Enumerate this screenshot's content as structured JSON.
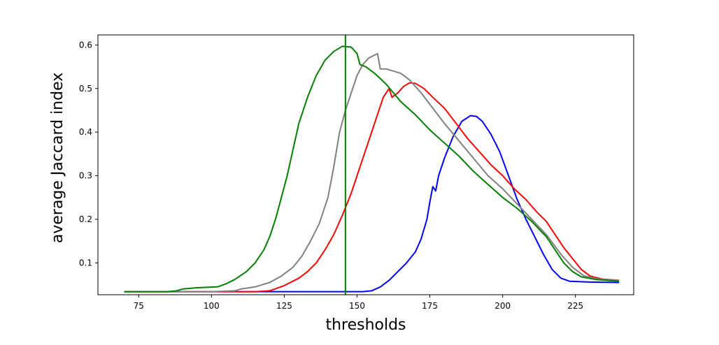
{
  "chart_data": {
    "type": "line",
    "title": "",
    "xlabel": "thresholds",
    "ylabel": "average Jaccard index",
    "xlim": [
      61,
      245
    ],
    "ylim": [
      0.027,
      0.623
    ],
    "xticks": [
      75,
      100,
      125,
      150,
      175,
      200,
      225
    ],
    "yticks": [
      0.1,
      0.2,
      0.3,
      0.4,
      0.5,
      0.6
    ],
    "grid": false,
    "legend": "none",
    "vline": {
      "x": 146,
      "color": "#008000"
    },
    "series": [
      {
        "color": "#0000ff",
        "points": [
          [
            70,
            0.034
          ],
          [
            100,
            0.034
          ],
          [
            120,
            0.034
          ],
          [
            140,
            0.034
          ],
          [
            152,
            0.034
          ],
          [
            155,
            0.036
          ],
          [
            158,
            0.045
          ],
          [
            161,
            0.06
          ],
          [
            164,
            0.08
          ],
          [
            167,
            0.1
          ],
          [
            170,
            0.125
          ],
          [
            172,
            0.155
          ],
          [
            174,
            0.2
          ],
          [
            175,
            0.24
          ],
          [
            176,
            0.275
          ],
          [
            177,
            0.265
          ],
          [
            178,
            0.3
          ],
          [
            180,
            0.34
          ],
          [
            183,
            0.39
          ],
          [
            186,
            0.425
          ],
          [
            189,
            0.438
          ],
          [
            191,
            0.436
          ],
          [
            193,
            0.425
          ],
          [
            196,
            0.395
          ],
          [
            199,
            0.355
          ],
          [
            202,
            0.3
          ],
          [
            205,
            0.245
          ],
          [
            208,
            0.2
          ],
          [
            211,
            0.16
          ],
          [
            214,
            0.12
          ],
          [
            217,
            0.085
          ],
          [
            220,
            0.065
          ],
          [
            223,
            0.058
          ],
          [
            230,
            0.056
          ],
          [
            240,
            0.055
          ]
        ]
      },
      {
        "color": "#ff0000",
        "points": [
          [
            70,
            0.034
          ],
          [
            100,
            0.034
          ],
          [
            115,
            0.034
          ],
          [
            120,
            0.036
          ],
          [
            125,
            0.048
          ],
          [
            130,
            0.065
          ],
          [
            133,
            0.08
          ],
          [
            136,
            0.1
          ],
          [
            139,
            0.13
          ],
          [
            142,
            0.165
          ],
          [
            145,
            0.21
          ],
          [
            148,
            0.26
          ],
          [
            151,
            0.32
          ],
          [
            154,
            0.38
          ],
          [
            157,
            0.44
          ],
          [
            159,
            0.48
          ],
          [
            161,
            0.5
          ],
          [
            162,
            0.48
          ],
          [
            164,
            0.49
          ],
          [
            166,
            0.505
          ],
          [
            168,
            0.513
          ],
          [
            170,
            0.512
          ],
          [
            173,
            0.5
          ],
          [
            176,
            0.48
          ],
          [
            180,
            0.455
          ],
          [
            184,
            0.42
          ],
          [
            188,
            0.385
          ],
          [
            192,
            0.355
          ],
          [
            196,
            0.325
          ],
          [
            200,
            0.3
          ],
          [
            204,
            0.27
          ],
          [
            208,
            0.245
          ],
          [
            212,
            0.215
          ],
          [
            215,
            0.195
          ],
          [
            218,
            0.165
          ],
          [
            221,
            0.135
          ],
          [
            224,
            0.11
          ],
          [
            227,
            0.085
          ],
          [
            230,
            0.07
          ],
          [
            234,
            0.063
          ],
          [
            240,
            0.06
          ]
        ]
      },
      {
        "color": "#808080",
        "points": [
          [
            70,
            0.034
          ],
          [
            100,
            0.034
          ],
          [
            108,
            0.036
          ],
          [
            110,
            0.04
          ],
          [
            115,
            0.045
          ],
          [
            120,
            0.055
          ],
          [
            124,
            0.07
          ],
          [
            128,
            0.09
          ],
          [
            131,
            0.115
          ],
          [
            134,
            0.15
          ],
          [
            137,
            0.19
          ],
          [
            140,
            0.25
          ],
          [
            142,
            0.32
          ],
          [
            144,
            0.4
          ],
          [
            146,
            0.45
          ],
          [
            148,
            0.49
          ],
          [
            150,
            0.53
          ],
          [
            152,
            0.555
          ],
          [
            154,
            0.57
          ],
          [
            157,
            0.58
          ],
          [
            158,
            0.545
          ],
          [
            160,
            0.545
          ],
          [
            165,
            0.535
          ],
          [
            168,
            0.52
          ],
          [
            172,
            0.49
          ],
          [
            176,
            0.455
          ],
          [
            180,
            0.42
          ],
          [
            185,
            0.38
          ],
          [
            190,
            0.34
          ],
          [
            195,
            0.3
          ],
          [
            200,
            0.27
          ],
          [
            205,
            0.235
          ],
          [
            210,
            0.2
          ],
          [
            215,
            0.165
          ],
          [
            220,
            0.12
          ],
          [
            224,
            0.09
          ],
          [
            228,
            0.07
          ],
          [
            233,
            0.063
          ],
          [
            240,
            0.06
          ]
        ]
      },
      {
        "color": "#008000",
        "points": [
          [
            70,
            0.034
          ],
          [
            85,
            0.034
          ],
          [
            88,
            0.036
          ],
          [
            90,
            0.04
          ],
          [
            95,
            0.043
          ],
          [
            102,
            0.045
          ],
          [
            105,
            0.052
          ],
          [
            108,
            0.062
          ],
          [
            112,
            0.08
          ],
          [
            115,
            0.1
          ],
          [
            118,
            0.13
          ],
          [
            120,
            0.16
          ],
          [
            122,
            0.2
          ],
          [
            124,
            0.25
          ],
          [
            126,
            0.3
          ],
          [
            128,
            0.36
          ],
          [
            130,
            0.42
          ],
          [
            133,
            0.48
          ],
          [
            136,
            0.53
          ],
          [
            139,
            0.565
          ],
          [
            142,
            0.585
          ],
          [
            145,
            0.597
          ],
          [
            148,
            0.595
          ],
          [
            150,
            0.58
          ],
          [
            151,
            0.555
          ],
          [
            153,
            0.55
          ],
          [
            156,
            0.535
          ],
          [
            160,
            0.51
          ],
          [
            165,
            0.47
          ],
          [
            170,
            0.44
          ],
          [
            175,
            0.405
          ],
          [
            180,
            0.375
          ],
          [
            185,
            0.345
          ],
          [
            190,
            0.31
          ],
          [
            195,
            0.28
          ],
          [
            200,
            0.25
          ],
          [
            205,
            0.225
          ],
          [
            210,
            0.195
          ],
          [
            215,
            0.16
          ],
          [
            218,
            0.13
          ],
          [
            221,
            0.1
          ],
          [
            224,
            0.08
          ],
          [
            227,
            0.068
          ],
          [
            232,
            0.062
          ],
          [
            240,
            0.058
          ]
        ]
      }
    ]
  }
}
